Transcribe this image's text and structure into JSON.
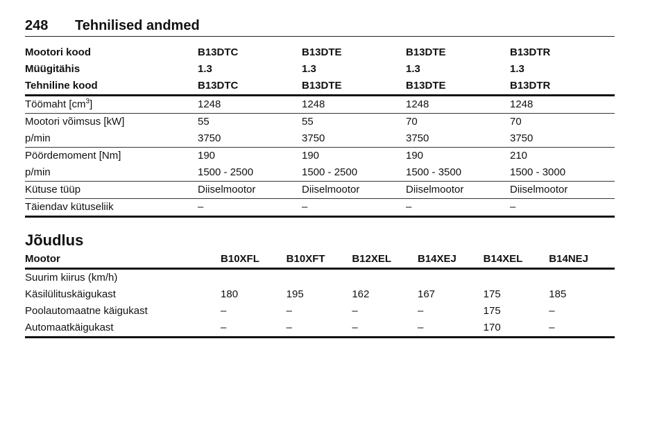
{
  "header": {
    "page_number": "248",
    "title": "Tehnilised andmed"
  },
  "engine_table": {
    "rows_bold": [
      [
        "Mootori kood",
        "B13DTC",
        "B13DTE",
        "B13DTE",
        "B13DTR"
      ],
      [
        "Müügitähis",
        "1.3",
        "1.3",
        "1.3",
        "1.3"
      ],
      [
        "Tehniline kood",
        "B13DTC",
        "B13DTE",
        "B13DTE",
        "B13DTR"
      ]
    ],
    "displacement": {
      "label": "Töömaht [cm",
      "label_sup": "3",
      "label_end": "]",
      "values": [
        "1248",
        "1248",
        "1248",
        "1248"
      ]
    },
    "rows": [
      [
        "Mootori võimsus [kW]",
        "55",
        "55",
        "70",
        "70"
      ],
      [
        "p/min",
        "3750",
        "3750",
        "3750",
        "3750"
      ],
      [
        "Pöördemoment [Nm]",
        "190",
        "190",
        "190",
        "210"
      ],
      [
        "p/min",
        "1500 - 2500",
        "1500 - 2500",
        "1500 - 3500",
        "1500 - 3000"
      ],
      [
        "Kütuse tüüp",
        "Diiselmootor",
        "Diiselmootor",
        "Diiselmootor",
        "Diiselmootor"
      ],
      [
        "Täiendav kütuseliik",
        "–",
        "–",
        "–",
        "–"
      ]
    ]
  },
  "performance": {
    "section_title": "Jõudlus",
    "header": [
      "Mootor",
      "B10XFL",
      "B10XFT",
      "B12XEL",
      "B14XEJ",
      "B14XEL",
      "B14NEJ"
    ],
    "subheading": "Suurim kiirus (km/h)",
    "rows": [
      [
        "Käsilülituskäigukast",
        "180",
        "195",
        "162",
        "167",
        "175",
        "185"
      ],
      [
        "Poolautomaatne käigukast",
        "–",
        "–",
        "–",
        "–",
        "175",
        "–"
      ],
      [
        "Automaatkäigukast",
        "–",
        "–",
        "–",
        "–",
        "170",
        "–"
      ]
    ]
  }
}
